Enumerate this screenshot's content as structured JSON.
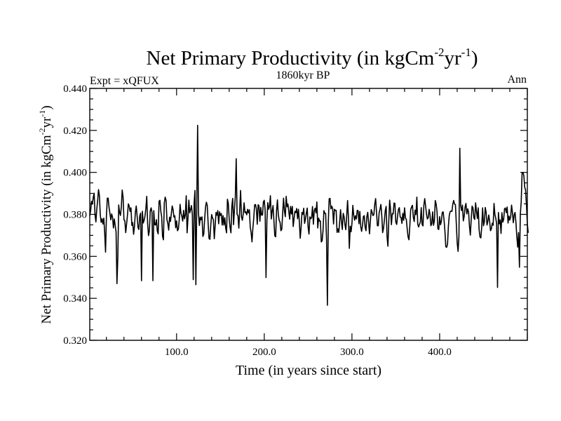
{
  "chart_data": {
    "type": "line",
    "title_main": "Net Primary Productivity (in kgCm",
    "title_sup1": "-2",
    "title_mid": "yr",
    "title_sup2": "-1",
    "title_end": ")",
    "subtitle_left": "Expt = xQFUX",
    "subtitle_center": "1860kyr BP",
    "subtitle_right": "Ann",
    "xlabel": "Time (in years since start)",
    "ylabel_main": "Net Primary Productivity (in kgCm",
    "ylabel_sup1": "-2",
    "ylabel_mid": "yr",
    "ylabel_sup2": "-1",
    "ylabel_end": ")",
    "xlim": [
      1,
      500
    ],
    "ylim": [
      0.32,
      0.44
    ],
    "x_major_ticks": [
      100,
      200,
      300,
      400
    ],
    "x_tick_labels": [
      "100.0",
      "200.0",
      "300.0",
      "400.0"
    ],
    "y_major_ticks": [
      0.32,
      0.34,
      0.36,
      0.38,
      0.4,
      0.42,
      0.44
    ],
    "y_tick_labels": [
      "0.320",
      "0.340",
      "0.360",
      "0.380",
      "0.400",
      "0.420",
      "0.440"
    ],
    "series": [
      {
        "name": "Net Primary Productivity",
        "color": "#000000",
        "x_start": 1,
        "x_step": 1,
        "values": [
          0.3793,
          0.3818,
          0.3862,
          0.3849,
          0.3881,
          0.3901,
          0.3799,
          0.3764,
          0.3825,
          0.3866,
          0.3918,
          0.3888,
          0.3797,
          0.3762,
          0.3779,
          0.3754,
          0.3782,
          0.3713,
          0.362,
          0.3791,
          0.3877,
          0.3877,
          0.3832,
          0.3804,
          0.3774,
          0.3802,
          0.3786,
          0.3735,
          0.3778,
          0.3747,
          0.3716,
          0.347,
          0.3594,
          0.3845,
          0.3809,
          0.3795,
          0.3835,
          0.3916,
          0.3882,
          0.3774,
          0.377,
          0.3713,
          0.3754,
          0.3796,
          0.385,
          0.3839,
          0.3814,
          0.3831,
          0.3747,
          0.3761,
          0.3705,
          0.3744,
          0.3809,
          0.384,
          0.3793,
          0.3738,
          0.3728,
          0.3792,
          0.3806,
          0.3484,
          0.3815,
          0.3759,
          0.3772,
          0.3792,
          0.3829,
          0.3886,
          0.3756,
          0.3699,
          0.3722,
          0.3817,
          0.3831,
          0.3808,
          0.3484,
          0.3818,
          0.3751,
          0.3749,
          0.3775,
          0.3721,
          0.3707,
          0.3862,
          0.3867,
          0.3816,
          0.3789,
          0.3695,
          0.3679,
          0.3854,
          0.3882,
          0.3867,
          0.3775,
          0.3757,
          0.3725,
          0.3787,
          0.3766,
          0.3802,
          0.384,
          0.3823,
          0.3787,
          0.3793,
          0.3736,
          0.3769,
          0.3722,
          0.3729,
          0.3771,
          0.3848,
          0.3805,
          0.3791,
          0.3768,
          0.3819,
          0.3779,
          0.3798,
          0.3889,
          0.3712,
          0.3782,
          0.3868,
          0.3807,
          0.3823,
          0.3842,
          0.3798,
          0.3489,
          0.3854,
          0.3914,
          0.3465,
          0.3835,
          0.4224,
          0.3806,
          0.3747,
          0.3787,
          0.3774,
          0.3788,
          0.3695,
          0.3706,
          0.3775,
          0.3834,
          0.3858,
          0.3842,
          0.3756,
          0.3685,
          0.3681,
          0.3749,
          0.3799,
          0.3783,
          0.3774,
          0.3684,
          0.3746,
          0.3809,
          0.3796,
          0.3818,
          0.3755,
          0.3812,
          0.3795,
          0.3804,
          0.3749,
          0.3794,
          0.3749,
          0.3784,
          0.3735,
          0.3712,
          0.3872,
          0.3852,
          0.3779,
          0.3738,
          0.3712,
          0.3838,
          0.3876,
          0.3751,
          0.3823,
          0.3884,
          0.4065,
          0.38,
          0.3794,
          0.3734,
          0.3824,
          0.3914,
          0.3788,
          0.3772,
          0.3802,
          0.3855,
          0.3808,
          0.3812,
          0.3798,
          0.3824,
          0.3807,
          0.3822,
          0.3739,
          0.3714,
          0.3669,
          0.3734,
          0.3781,
          0.3845,
          0.3847,
          0.3827,
          0.3753,
          0.3846,
          0.3841,
          0.3767,
          0.3833,
          0.3796,
          0.3797,
          0.3859,
          0.3867,
          0.382,
          0.3499,
          0.377,
          0.3856,
          0.3824,
          0.3838,
          0.3889,
          0.3778,
          0.3815,
          0.3842,
          0.3771,
          0.3698,
          0.3693,
          0.3818,
          0.3869,
          0.3799,
          0.3771,
          0.3763,
          0.3722,
          0.3729,
          0.3807,
          0.3877,
          0.3815,
          0.3789,
          0.3886,
          0.3836,
          0.3849,
          0.3813,
          0.3777,
          0.3838,
          0.3802,
          0.3838,
          0.3742,
          0.3781,
          0.3815,
          0.3808,
          0.3828,
          0.3779,
          0.3824,
          0.3765,
          0.3686,
          0.3737,
          0.3809,
          0.38,
          0.3829,
          0.3757,
          0.3778,
          0.3806,
          0.383,
          0.3739,
          0.3706,
          0.3788,
          0.3779,
          0.3784,
          0.3837,
          0.3753,
          0.3817,
          0.3829,
          0.3807,
          0.3859,
          0.3735,
          0.3782,
          0.3768,
          0.3769,
          0.3669,
          0.3674,
          0.3722,
          0.3818,
          0.3805,
          0.3804,
          0.3681,
          0.3367,
          0.3759,
          0.3874,
          0.3876,
          0.3826,
          0.3839,
          0.3827,
          0.3754,
          0.3824,
          0.3819,
          0.3819,
          0.3714,
          0.3731,
          0.3714,
          0.3766,
          0.3822,
          0.3765,
          0.3728,
          0.3805,
          0.3789,
          0.3751,
          0.3727,
          0.3793,
          0.3866,
          0.3782,
          0.3638,
          0.3744,
          0.3717,
          0.3757,
          0.3843,
          0.3797,
          0.3772,
          0.3793,
          0.3778,
          0.3819,
          0.3818,
          0.3755,
          0.3814,
          0.3742,
          0.3719,
          0.3748,
          0.3789,
          0.3794,
          0.3739,
          0.3722,
          0.379,
          0.381,
          0.3761,
          0.3707,
          0.3769,
          0.3823,
          0.3809,
          0.3794,
          0.3799,
          0.3849,
          0.3875,
          0.3812,
          0.3746,
          0.3746,
          0.3808,
          0.3825,
          0.3847,
          0.3795,
          0.3713,
          0.3734,
          0.3773,
          0.3818,
          0.3838,
          0.3694,
          0.3648,
          0.3767,
          0.3868,
          0.3825,
          0.3751,
          0.3804,
          0.3802,
          0.3854,
          0.3852,
          0.3763,
          0.3752,
          0.3791,
          0.3824,
          0.3832,
          0.3787,
          0.3785,
          0.3757,
          0.3805,
          0.3772,
          0.3831,
          0.3783,
          0.3776,
          0.3731,
          0.3692,
          0.3679,
          0.3746,
          0.3823,
          0.3835,
          0.3843,
          0.3785,
          0.3766,
          0.382,
          0.3799,
          0.3882,
          0.3753,
          0.374,
          0.3753,
          0.3763,
          0.3832,
          0.3752,
          0.3745,
          0.3844,
          0.3875,
          0.3839,
          0.3801,
          0.3778,
          0.3784,
          0.3824,
          0.3799,
          0.3746,
          0.3755,
          0.3812,
          0.3748,
          0.3769,
          0.3866,
          0.3849,
          0.3814,
          0.3731,
          0.3728,
          0.3789,
          0.375,
          0.3769,
          0.3809,
          0.3812,
          0.3774,
          0.3721,
          0.3646,
          0.3643,
          0.3659,
          0.3745,
          0.3796,
          0.3813,
          0.3816,
          0.3814,
          0.3849,
          0.3866,
          0.3849,
          0.3846,
          0.3756,
          0.3665,
          0.3624,
          0.3695,
          0.4115,
          0.3841,
          0.3818,
          0.3844,
          0.3769,
          0.3791,
          0.3835,
          0.3852,
          0.3802,
          0.3826,
          0.3811,
          0.3743,
          0.3701,
          0.3778,
          0.3839,
          0.3831,
          0.3783,
          0.3776,
          0.3855,
          0.3815,
          0.378,
          0.3831,
          0.3727,
          0.3692,
          0.3688,
          0.3741,
          0.3831,
          0.3746,
          0.3764,
          0.3833,
          0.3809,
          0.3749,
          0.3768,
          0.3797,
          0.3767,
          0.3722,
          0.3731,
          0.3758,
          0.3748,
          0.3852,
          0.3799,
          0.3781,
          0.3755,
          0.3452,
          0.3809,
          0.3755,
          0.3773,
          0.3709,
          0.3808,
          0.3763,
          0.3776,
          0.3827,
          0.383,
          0.3808,
          0.3835,
          0.3759,
          0.3792,
          0.3773,
          0.3789,
          0.3844,
          0.3809,
          0.376,
          0.3798,
          0.3809,
          0.3761,
          0.3695,
          0.3644,
          0.3713,
          0.3548,
          0.38,
          0.3859,
          0.3996,
          0.4,
          0.3985,
          0.3929,
          0.3916,
          0.3843,
          0.3754,
          0.3712
        ]
      }
    ]
  }
}
